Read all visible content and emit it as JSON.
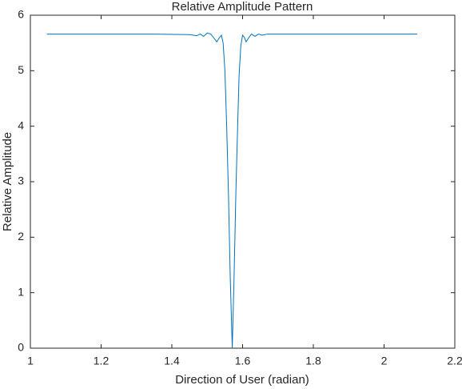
{
  "chart_data": {
    "type": "line",
    "title": "Relative Amplitude Pattern",
    "x_label": "Direction of User (radian)",
    "y_label": "Relative Amplitude",
    "x": [
      1.047,
      1.2,
      1.35,
      1.45,
      1.47,
      1.48,
      1.49,
      1.5,
      1.51,
      1.52,
      1.527,
      1.535,
      1.54,
      1.545,
      1.55,
      1.555,
      1.56,
      1.565,
      1.5708,
      1.576,
      1.581,
      1.586,
      1.59,
      1.595,
      1.6,
      1.605,
      1.61,
      1.618,
      1.625,
      1.635,
      1.645,
      1.655,
      1.67,
      1.8,
      1.95,
      2.094
    ],
    "series": [
      {
        "color": "#0072bd",
        "values": [
          5.66,
          5.66,
          5.66,
          5.65,
          5.63,
          5.66,
          5.62,
          5.68,
          5.66,
          5.58,
          5.52,
          5.6,
          5.64,
          5.5,
          5.0,
          4.0,
          2.8,
          1.3,
          0,
          1.3,
          2.8,
          4.0,
          4.9,
          5.45,
          5.64,
          5.6,
          5.52,
          5.6,
          5.66,
          5.62,
          5.66,
          5.64,
          5.66,
          5.66,
          5.66,
          5.66
        ]
      }
    ],
    "xlim": [
      1,
      2.2
    ],
    "xticks": [
      1,
      1.2,
      1.4,
      1.6,
      1.8,
      2,
      2.2
    ],
    "ylim": [
      0,
      6
    ],
    "yticks": [
      0,
      1,
      2,
      3,
      4,
      5,
      6
    ]
  }
}
